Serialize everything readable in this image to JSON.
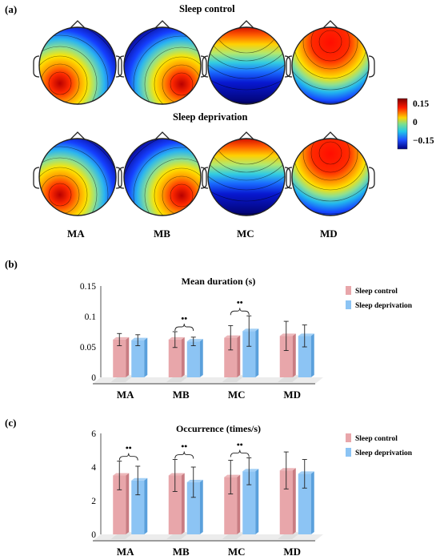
{
  "panel_labels": {
    "a": "(a)",
    "b": "(b)",
    "c": "(c)"
  },
  "topomaps": {
    "row_titles": [
      "Sleep control",
      "Sleep deprivation"
    ],
    "map_labels": [
      "MA",
      "MB",
      "MC",
      "MD"
    ],
    "colorbar": {
      "ticks": [
        "0.15",
        "0",
        "−0.15"
      ],
      "colors": [
        "#7f0000",
        "#ff0000",
        "#ffd200",
        "#33ddaa",
        "#2a7fff",
        "#00007f"
      ]
    }
  },
  "colors": {
    "control": "#e8a6aa",
    "deprivation": "#8cc4f4"
  },
  "chart_data": [
    {
      "type": "bar",
      "title": "Mean duration (s)",
      "categories": [
        "MA",
        "MB",
        "MC",
        "MD"
      ],
      "ylim": [
        0,
        0.15
      ],
      "yticks": [
        "0",
        "0.05",
        "0.1",
        "0.15"
      ],
      "legend": "top-right",
      "series": [
        {
          "name": "Sleep control",
          "values": [
            0.062,
            0.062,
            0.065,
            0.068
          ],
          "error": [
            0.01,
            0.013,
            0.02,
            0.024
          ]
        },
        {
          "name": "Sleep deprivation",
          "values": [
            0.061,
            0.059,
            0.076,
            0.068
          ],
          "error": [
            0.009,
            0.007,
            0.025,
            0.018
          ]
        }
      ],
      "significance": [
        {
          "category": "MB",
          "label": "••"
        },
        {
          "category": "MC",
          "label": "••"
        }
      ]
    },
    {
      "type": "bar",
      "title": "Occurrence (times/s)",
      "categories": [
        "MA",
        "MB",
        "MC",
        "MD"
      ],
      "ylim": [
        0,
        6
      ],
      "yticks": [
        "0",
        "2",
        "4",
        "6"
      ],
      "legend": "top-right",
      "series": [
        {
          "name": "Sleep control",
          "values": [
            3.5,
            3.5,
            3.4,
            3.8
          ],
          "error": [
            0.85,
            0.95,
            1.0,
            1.1
          ]
        },
        {
          "name": "Sleep deprivation",
          "values": [
            3.2,
            3.1,
            3.75,
            3.6
          ],
          "error": [
            0.85,
            0.9,
            0.8,
            0.85
          ]
        }
      ],
      "significance": [
        {
          "category": "MA",
          "label": "••"
        },
        {
          "category": "MB",
          "label": "••"
        },
        {
          "category": "MC",
          "label": "••"
        }
      ]
    }
  ]
}
